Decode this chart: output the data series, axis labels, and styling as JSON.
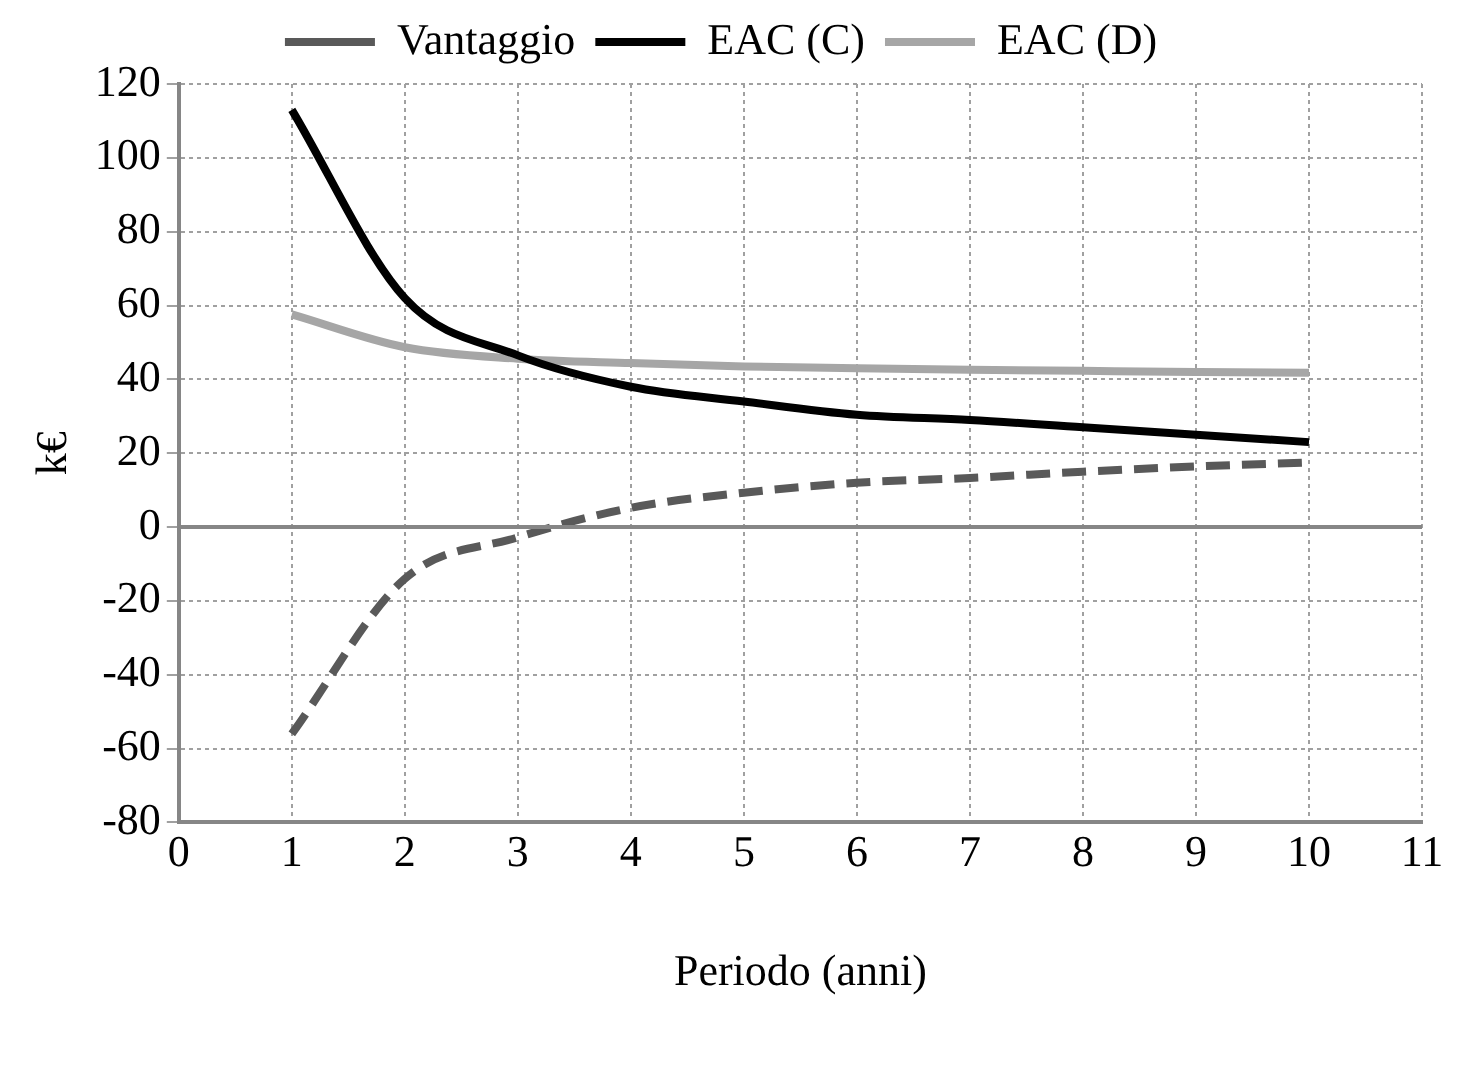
{
  "chart_data": {
    "type": "line",
    "xlabel": "Periodo (anni)",
    "ylabel": "k€",
    "x": [
      1,
      2,
      3,
      4,
      5,
      6,
      7,
      8,
      9,
      10
    ],
    "series": [
      {
        "name": "Vantaggio",
        "color": "#595959",
        "line_style": "dashed",
        "values": [
          -56,
          -14,
          -2.8,
          5.2,
          9.3,
          12,
          13.3,
          15,
          16.4,
          17.5
        ]
      },
      {
        "name": "EAC (C)",
        "color": "#000000",
        "line_style": "solid",
        "values": [
          113,
          62,
          46.5,
          38,
          34,
          30.4,
          29,
          27,
          25,
          23
        ]
      },
      {
        "name": "EAC (D)",
        "color": "#a6a6a6",
        "line_style": "solid",
        "values": [
          57.6,
          48.7,
          45.6,
          44.4,
          43.5,
          43,
          42.6,
          42.3,
          42,
          41.8
        ]
      }
    ],
    "xlim": [
      0,
      11
    ],
    "xticks": [
      0,
      1,
      2,
      3,
      4,
      5,
      6,
      7,
      8,
      9,
      10,
      11
    ],
    "ylim": [
      -80,
      120
    ],
    "yticks": [
      -80,
      -60,
      -40,
      -20,
      0,
      20,
      40,
      60,
      80,
      100,
      120
    ],
    "grid": true,
    "legend": "top",
    "marker": "none"
  }
}
